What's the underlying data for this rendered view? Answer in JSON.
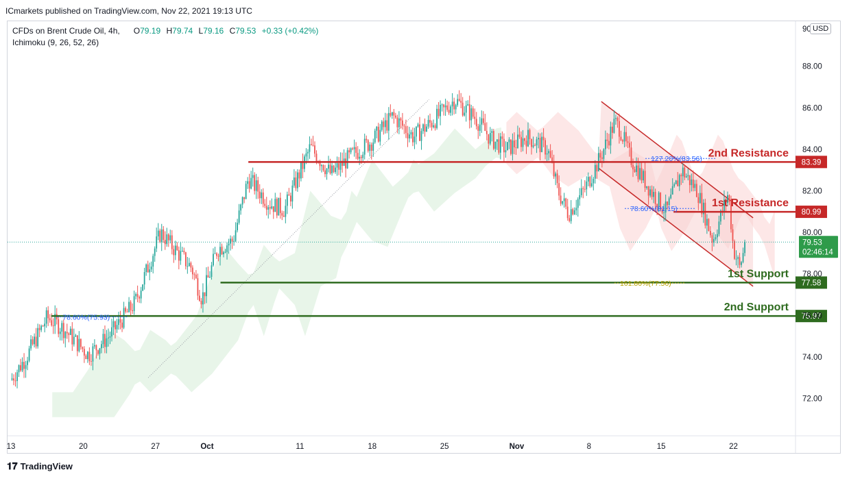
{
  "publisher_line": "ICmarkets published on TradingView.com, Nov 22, 2021 19:13 UTC",
  "legend": {
    "symbol": "CFDs on Brent Crude Oil, 4h,",
    "open_label": "O",
    "open": "79.19",
    "high_label": "H",
    "high": "79.74",
    "low_label": "L",
    "low": "79.16",
    "close_label": "C",
    "close": "79.53",
    "change": "+0.33 (+0.42%)",
    "indicator": "Ichimoku (9, 26, 52, 26)"
  },
  "currency_badge": "USD",
  "footer": {
    "logo_icon": "tradingview-logo-icon",
    "brand": "TradingView"
  },
  "colors": {
    "up": "#26a69a",
    "down": "#ef5350",
    "resistance": "#c62828",
    "support": "#2e6b1f",
    "cloud": "#e8f5e9",
    "cloud_red": "#fde7e7",
    "channel": "#f8d2d2",
    "fib": "#2962ff",
    "fib_support": "#b8a000"
  },
  "chart_data": {
    "type": "candlestick",
    "symbol": "CFDs on Brent Crude Oil",
    "timeframe": "4h",
    "ylim": [
      70.2,
      90.2
    ],
    "y_ticks": [
      72,
      74,
      76,
      78,
      80,
      82,
      84,
      86,
      88
    ],
    "y_tick_labels": [
      "72.00",
      "74.00",
      "76.00",
      "78.00",
      "80.00",
      "82.00",
      "84.00",
      "86.00",
      "88.00"
    ],
    "y_top_partial_label": "90",
    "x_ticks": [
      {
        "day": 0,
        "label": "13"
      },
      {
        "day": 7,
        "label": "20"
      },
      {
        "day": 14,
        "label": "27"
      },
      {
        "day": 19,
        "label": "Oct"
      },
      {
        "day": 28,
        "label": "11"
      },
      {
        "day": 35,
        "label": "18"
      },
      {
        "day": 42,
        "label": "25"
      },
      {
        "day": 49,
        "label": "Nov"
      },
      {
        "day": 56,
        "label": "8"
      },
      {
        "day": 63,
        "label": "15"
      },
      {
        "day": 70,
        "label": "22"
      }
    ],
    "price_path": [
      [
        0,
        72.9
      ],
      [
        1.5,
        74.0
      ],
      [
        3.5,
        75.9
      ],
      [
        5,
        75.4
      ],
      [
        7.5,
        74.1
      ],
      [
        9.5,
        75.0
      ],
      [
        12,
        76.6
      ],
      [
        14.5,
        80.0
      ],
      [
        16,
        79.1
      ],
      [
        17.5,
        78.3
      ],
      [
        18.5,
        76.8
      ],
      [
        20,
        79.2
      ],
      [
        21.5,
        79.6
      ],
      [
        23,
        82.6
      ],
      [
        25,
        81.4
      ],
      [
        26.5,
        81.1
      ],
      [
        29,
        84.1
      ],
      [
        31,
        82.8
      ],
      [
        33,
        83.7
      ],
      [
        35,
        84.4
      ],
      [
        37,
        85.6
      ],
      [
        39,
        84.6
      ],
      [
        41,
        85.4
      ],
      [
        43,
        86.4
      ],
      [
        45,
        85.5
      ],
      [
        46.5,
        84.5
      ],
      [
        48,
        84.0
      ],
      [
        50,
        84.6
      ],
      [
        52,
        84.0
      ],
      [
        53,
        82.0
      ],
      [
        54,
        80.9
      ],
      [
        55.5,
        82.0
      ],
      [
        57,
        83.5
      ],
      [
        58.5,
        85.3
      ],
      [
        59,
        85.0
      ],
      [
        60,
        83.6
      ],
      [
        62,
        82.0
      ],
      [
        63.5,
        81.0
      ],
      [
        65,
        83.0
      ],
      [
        66.5,
        82.0
      ],
      [
        68,
        79.6
      ],
      [
        69.5,
        81.9
      ],
      [
        70,
        79.2
      ],
      [
        70.6,
        78.3
      ],
      [
        71.2,
        79.53
      ]
    ],
    "current_price": "79.53",
    "countdown": "02:46:14",
    "levels": [
      {
        "name": "2nd Resistance",
        "value": 83.39,
        "label": "83.39",
        "kind": "resistance"
      },
      {
        "name": "1st Resistance",
        "value": 80.99,
        "label": "80.99",
        "kind": "resistance"
      },
      {
        "name": "1st Support",
        "value": 77.58,
        "label": "77.58",
        "kind": "support"
      },
      {
        "name": "2nd Support",
        "value": 75.97,
        "label": "75.97",
        "kind": "support"
      }
    ],
    "fib_labels": [
      {
        "text": "127.20%(83.56)",
        "day": 62,
        "value": 83.56,
        "style": "fib"
      },
      {
        "text": "78.60%(81.15)",
        "day": 60,
        "value": 81.15,
        "style": "fib"
      },
      {
        "text": "161.80%(77.56)",
        "day": 59,
        "value": 77.56,
        "style": "fib_support"
      },
      {
        "text": "78.60%(75.93)",
        "day": 5,
        "value": 75.93,
        "style": "fib"
      }
    ],
    "channel": {
      "upper": [
        [
          57.2,
          86.3
        ],
        [
          71.9,
          80.7
        ]
      ],
      "lower": [
        [
          56.9,
          83.1
        ],
        [
          71.9,
          77.4
        ]
      ]
    },
    "trendline": [
      [
        13.3,
        73.0
      ],
      [
        40.5,
        86.4
      ]
    ]
  }
}
